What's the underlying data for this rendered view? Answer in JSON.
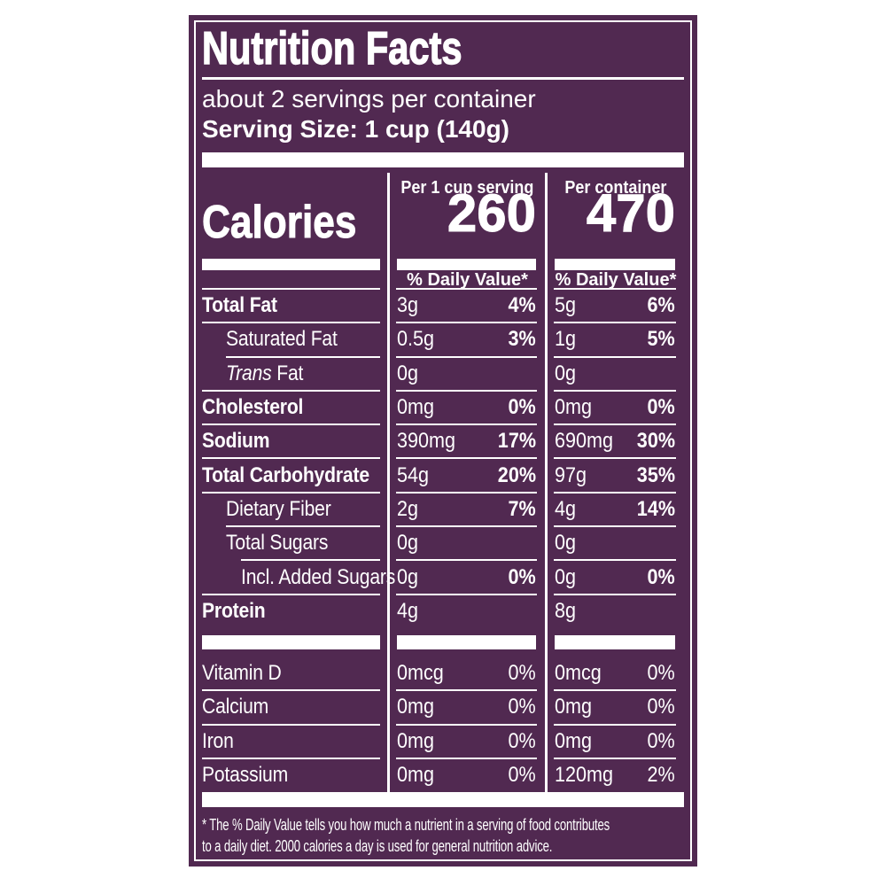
{
  "label": {
    "colors": {
      "background": "#512951",
      "foreground": "#ffffff"
    },
    "title": "Nutrition Facts",
    "servings_per_container": "about 2 servings per container",
    "serving_size": "Serving Size: 1 cup (140g)",
    "calories": {
      "label": "Calories",
      "columns": [
        {
          "header": "Per 1 cup serving",
          "value": "260",
          "dv_header": "% Daily Value*"
        },
        {
          "header": "Per container",
          "value": "470",
          "dv_header": "% Daily Value*"
        }
      ]
    },
    "nutrients": [
      {
        "name": "Total Fat",
        "bold": true,
        "indent": 0,
        "sep": "full",
        "c1_amount": "3g",
        "c1_dv": "4%",
        "c2_amount": "5g",
        "c2_dv": "6%",
        "dv_bold": true
      },
      {
        "name": "Saturated Fat",
        "bold": false,
        "indent": 1,
        "sep": "full",
        "c1_amount": "0.5g",
        "c1_dv": "3%",
        "c2_amount": "1g",
        "c2_dv": "5%",
        "dv_bold": true
      },
      {
        "name_prefix_italic": "Trans",
        "name": " Fat",
        "bold": false,
        "indent": 1,
        "sep": "i1",
        "c1_amount": "0g",
        "c1_dv": "",
        "c2_amount": "0g",
        "c2_dv": "",
        "dv_bold": false
      },
      {
        "name": "Cholesterol",
        "bold": true,
        "indent": 0,
        "sep": "full",
        "c1_amount": "0mg",
        "c1_dv": "0%",
        "c2_amount": "0mg",
        "c2_dv": "0%",
        "dv_bold": true
      },
      {
        "name": "Sodium",
        "bold": true,
        "indent": 0,
        "sep": "full",
        "c1_amount": "390mg",
        "c1_dv": "17%",
        "c2_amount": "690mg",
        "c2_dv": "30%",
        "dv_bold": true
      },
      {
        "name": "Total Carbohydrate",
        "bold": true,
        "indent": 0,
        "sep": "full",
        "c1_amount": "54g",
        "c1_dv": "20%",
        "c2_amount": "97g",
        "c2_dv": "35%",
        "dv_bold": true
      },
      {
        "name": "Dietary Fiber",
        "bold": false,
        "indent": 1,
        "sep": "full",
        "c1_amount": "2g",
        "c1_dv": "7%",
        "c2_amount": "4g",
        "c2_dv": "14%",
        "dv_bold": true
      },
      {
        "name": "Total Sugars",
        "bold": false,
        "indent": 1,
        "sep": "i1",
        "c1_amount": "0g",
        "c1_dv": "",
        "c2_amount": "0g",
        "c2_dv": "",
        "dv_bold": false
      },
      {
        "name": "Incl. Added Sugars",
        "bold": false,
        "indent": 2,
        "sep": "i2",
        "c1_amount": "0g",
        "c1_dv": "0%",
        "c2_amount": "0g",
        "c2_dv": "0%",
        "dv_bold": true
      },
      {
        "name": "Protein",
        "bold": true,
        "indent": 0,
        "sep": "full",
        "c1_amount": "4g",
        "c1_dv": "",
        "c2_amount": "8g",
        "c2_dv": "",
        "dv_bold": false
      }
    ],
    "vitamins": [
      {
        "name": "Vitamin D",
        "bold": false,
        "indent": 0,
        "sep": "none",
        "c1_amount": "0mcg",
        "c1_dv": "0%",
        "c2_amount": "0mcg",
        "c2_dv": "0%",
        "dv_bold": false
      },
      {
        "name": "Calcium",
        "bold": false,
        "indent": 0,
        "sep": "full",
        "c1_amount": "0mg",
        "c1_dv": "0%",
        "c2_amount": "0mg",
        "c2_dv": "0%",
        "dv_bold": false
      },
      {
        "name": "Iron",
        "bold": false,
        "indent": 0,
        "sep": "full",
        "c1_amount": "0mg",
        "c1_dv": "0%",
        "c2_amount": "0mg",
        "c2_dv": "0%",
        "dv_bold": false
      },
      {
        "name": "Potassium",
        "bold": false,
        "indent": 0,
        "sep": "full",
        "c1_amount": "0mg",
        "c1_dv": "0%",
        "c2_amount": "120mg",
        "c2_dv": "2%",
        "dv_bold": false
      }
    ],
    "footnote_lines": [
      "* The % Daily Value tells you how much a nutrient in a serving of food contributes",
      "to a daily diet. 2000 calories a day is used for general nutrition advice."
    ]
  }
}
